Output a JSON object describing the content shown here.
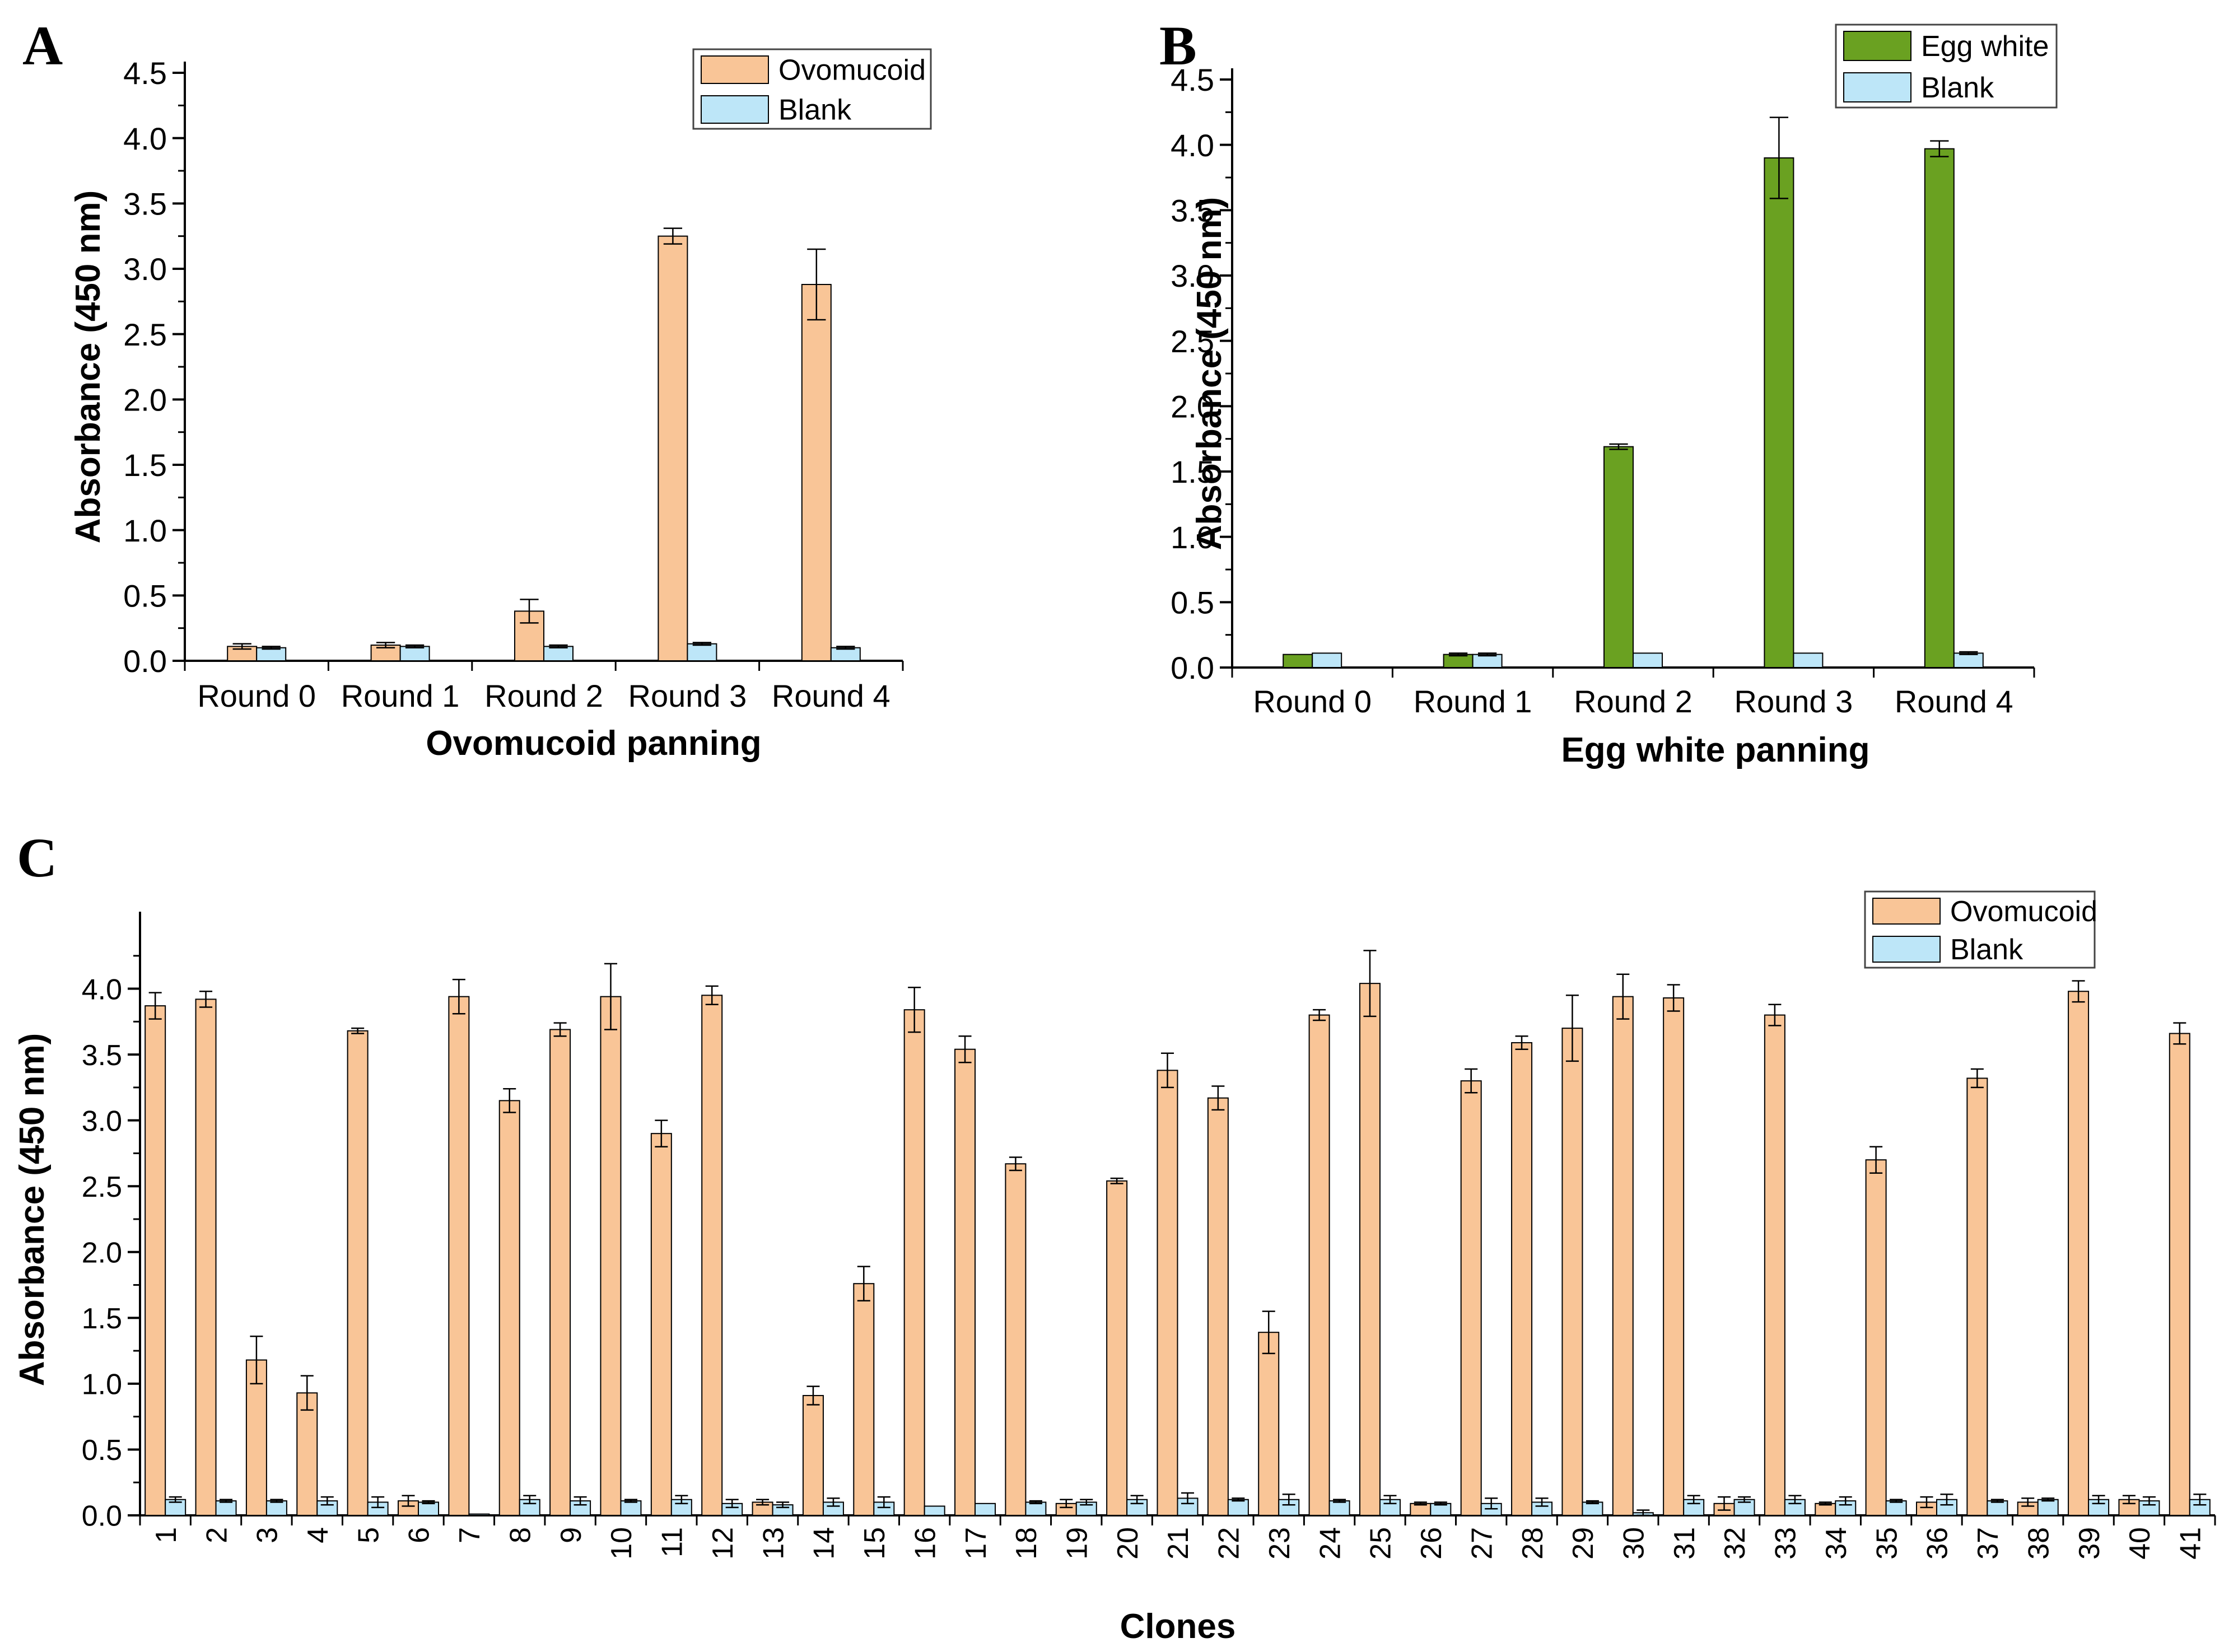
{
  "figure": {
    "colors": {
      "ovomucoid": "#f9c597",
      "egg_white": "#6aa121",
      "blank": "#bde6f8",
      "axis": "#000000"
    }
  },
  "chart_data": [
    {
      "panel": "A",
      "type": "bar",
      "xlabel": "Ovomucoid panning",
      "ylabel": "Absorbance (450 nm)",
      "ylim": [
        0,
        4.5
      ],
      "yticks": [
        "0.0",
        "0.5",
        "1.0",
        "1.5",
        "2.0",
        "2.5",
        "3.0",
        "3.5",
        "4.0",
        "4.5"
      ],
      "legend_position": "top-right",
      "categories": [
        "Round 0",
        "Round 1",
        "Round 2",
        "Round 3",
        "Round 4"
      ],
      "series": [
        {
          "name": "Ovomucoid",
          "color_key": "ovomucoid",
          "values": [
            0.11,
            0.12,
            0.38,
            3.25,
            2.88
          ],
          "errors": [
            0.02,
            0.02,
            0.09,
            0.06,
            0.27
          ]
        },
        {
          "name": "Blank",
          "color_key": "blank",
          "values": [
            0.1,
            0.11,
            0.11,
            0.13,
            0.1
          ],
          "errors": [
            0.01,
            0.01,
            0.01,
            0.01,
            0.01
          ]
        }
      ]
    },
    {
      "panel": "B",
      "type": "bar",
      "xlabel": "Egg white panning",
      "ylabel": "Absorbance (450 nm)",
      "ylim": [
        0,
        4.5
      ],
      "yticks": [
        "0.0",
        "0.5",
        "1.0",
        "1.5",
        "2.0",
        "2.5",
        "3.0",
        "3.5",
        "4.0",
        "4.5"
      ],
      "legend_position": "top-right",
      "categories": [
        "Round 0",
        "Round 1",
        "Round 2",
        "Round 3",
        "Round 4"
      ],
      "series": [
        {
          "name": "Egg white",
          "color_key": "egg_white",
          "values": [
            0.1,
            0.1,
            1.69,
            3.9,
            3.97
          ],
          "errors": [
            0.0,
            0.01,
            0.02,
            0.31,
            0.06
          ]
        },
        {
          "name": "Blank",
          "color_key": "blank",
          "values": [
            0.11,
            0.1,
            0.11,
            0.11,
            0.11
          ],
          "errors": [
            0.0,
            0.01,
            0.0,
            0.0,
            0.01
          ]
        }
      ]
    },
    {
      "panel": "C",
      "type": "bar",
      "xlabel": "Clones",
      "ylabel": "Absorbance (450 nm)",
      "ylim": [
        0,
        4.5
      ],
      "yticks": [
        "0.0",
        "0.5",
        "1.0",
        "1.5",
        "2.0",
        "2.5",
        "3.0",
        "3.5",
        "4.0"
      ],
      "legend_position": "top-right",
      "categories": [
        "1",
        "2",
        "3",
        "4",
        "5",
        "6",
        "7",
        "8",
        "9",
        "10",
        "11",
        "12",
        "13",
        "14",
        "15",
        "16",
        "17",
        "18",
        "19",
        "20",
        "21",
        "22",
        "23",
        "24",
        "25",
        "26",
        "27",
        "28",
        "29",
        "30",
        "31",
        "32",
        "33",
        "34",
        "35",
        "36",
        "37",
        "38",
        "39",
        "40",
        "41"
      ],
      "series": [
        {
          "name": "Ovomucoid",
          "color_key": "ovomucoid",
          "values": [
            3.87,
            3.92,
            1.18,
            0.93,
            3.68,
            0.11,
            3.94,
            3.15,
            3.69,
            3.94,
            2.9,
            3.95,
            0.1,
            0.91,
            1.76,
            3.84,
            3.54,
            2.67,
            0.09,
            2.54,
            3.38,
            3.17,
            1.39,
            3.8,
            4.04,
            0.09,
            3.3,
            3.59,
            3.7,
            3.94,
            3.93,
            0.09,
            3.8,
            0.09,
            2.7,
            0.1,
            3.32,
            0.1,
            3.98,
            0.12,
            3.66
          ],
          "errors": [
            0.1,
            0.06,
            0.18,
            0.13,
            0.02,
            0.04,
            0.13,
            0.09,
            0.05,
            0.25,
            0.1,
            0.07,
            0.02,
            0.07,
            0.13,
            0.17,
            0.1,
            0.05,
            0.03,
            0.02,
            0.13,
            0.09,
            0.16,
            0.04,
            0.25,
            0.01,
            0.09,
            0.05,
            0.25,
            0.17,
            0.1,
            0.05,
            0.08,
            0.01,
            0.1,
            0.04,
            0.07,
            0.03,
            0.08,
            0.03,
            0.08
          ]
        },
        {
          "name": "Blank",
          "color_key": "blank",
          "values": [
            0.12,
            0.11,
            0.11,
            0.11,
            0.1,
            0.1,
            0.01,
            0.12,
            0.11,
            0.11,
            0.12,
            0.09,
            0.08,
            0.1,
            0.1,
            0.07,
            0.09,
            0.1,
            0.1,
            0.12,
            0.13,
            0.12,
            0.12,
            0.11,
            0.12,
            0.09,
            0.09,
            0.1,
            0.1,
            0.02,
            0.12,
            0.12,
            0.12,
            0.11,
            0.11,
            0.12,
            0.11,
            0.12,
            0.12,
            0.11,
            0.12
          ],
          "errors": [
            0.02,
            0.01,
            0.01,
            0.03,
            0.04,
            0.01,
            0.0,
            0.03,
            0.03,
            0.01,
            0.03,
            0.03,
            0.02,
            0.03,
            0.04,
            0.0,
            0.0,
            0.01,
            0.02,
            0.03,
            0.04,
            0.01,
            0.04,
            0.01,
            0.03,
            0.01,
            0.04,
            0.03,
            0.01,
            0.02,
            0.03,
            0.02,
            0.03,
            0.03,
            0.01,
            0.04,
            0.01,
            0.01,
            0.03,
            0.03,
            0.04
          ]
        }
      ]
    }
  ]
}
